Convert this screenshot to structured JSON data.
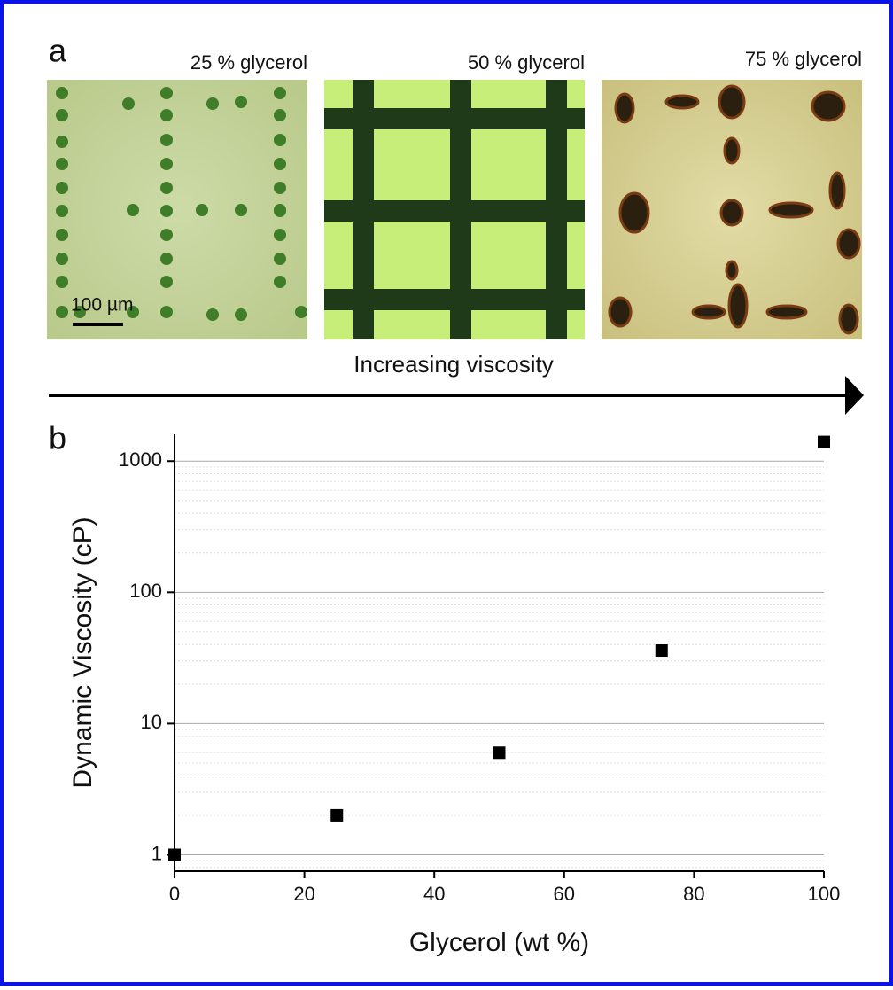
{
  "panel_a": {
    "label": "a",
    "captions": [
      "25 % glycerol",
      "50 % glycerol",
      "75 % glycerol"
    ],
    "scale_bar": "100 µm",
    "arrow_label": "Increasing viscosity"
  },
  "chart_data": {
    "type": "scatter",
    "panel_label": "b",
    "x_label": "Glycerol (wt %)",
    "y_label": "Dynamic Viscosity (cP)",
    "x": [
      0,
      25,
      50,
      75,
      100
    ],
    "values": [
      1,
      2,
      6,
      36,
      1400
    ],
    "color": "#000000",
    "xlim": [
      0,
      100
    ],
    "xticks": [
      0,
      20,
      40,
      60,
      80,
      100
    ],
    "ylim": [
      0.75,
      1600
    ],
    "yticks": [
      1,
      10,
      100,
      1000
    ],
    "log_y": true,
    "grid": true
  }
}
